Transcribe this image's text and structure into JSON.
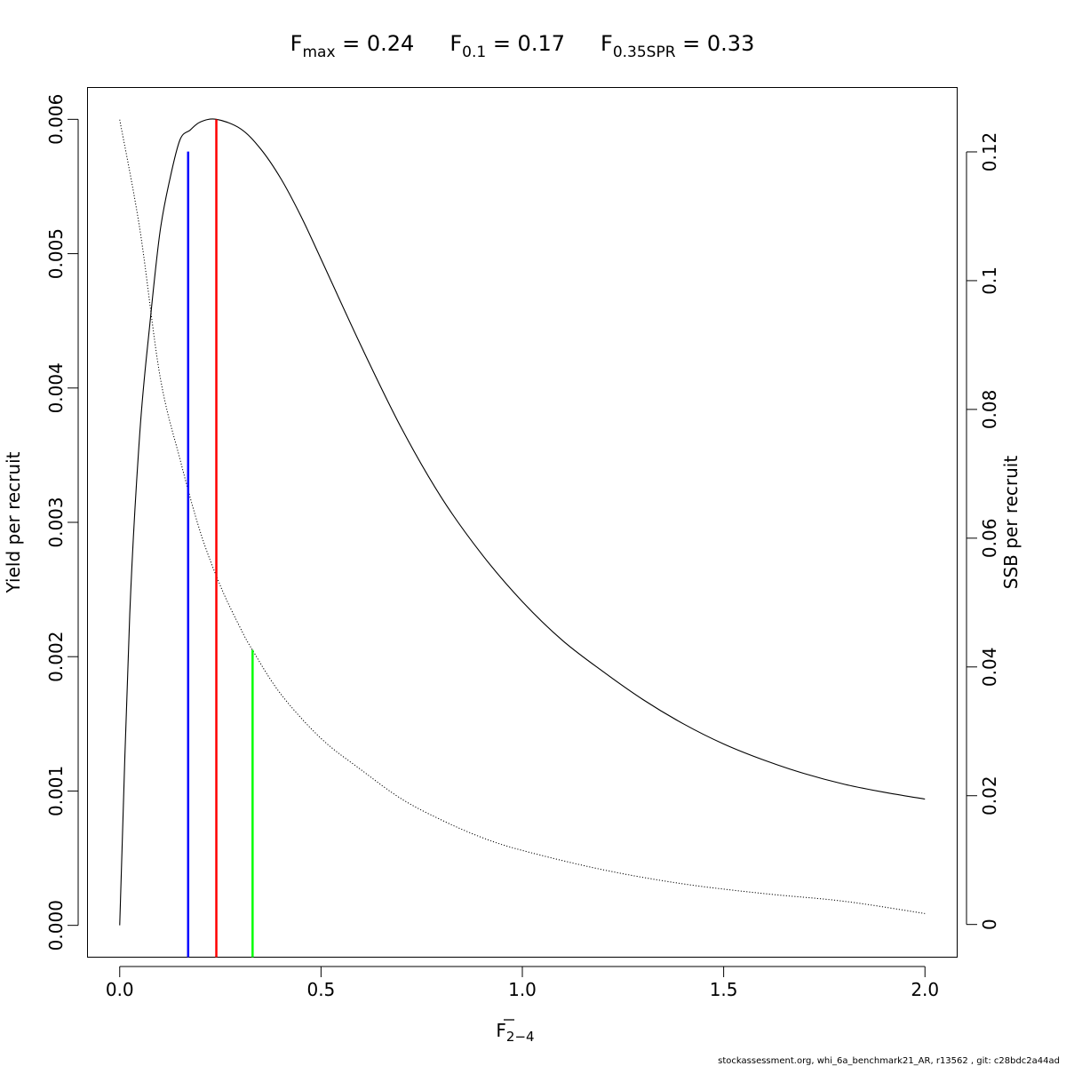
{
  "chart_data": {
    "type": "line",
    "title_parts": [
      {
        "base": "F",
        "sub": "max",
        "rest": " = 0.24"
      },
      {
        "base": "F",
        "sub": "0.1",
        "rest": " = 0.17"
      },
      {
        "base": "F",
        "sub": "0.35SPR",
        "rest": " = 0.33"
      }
    ],
    "xlabel": {
      "base": "F",
      "sub": "2−4"
    },
    "ylabel_left": "Yield per recruit",
    "ylabel_right": "SSB per recruit",
    "xlim": [
      -0.08,
      2.08
    ],
    "ylim_left": [
      -0.000237,
      0.006237
    ],
    "ylim_right": [
      -0.00508,
      0.13
    ],
    "x_ticks": [
      0,
      0.5,
      1,
      1.5,
      2
    ],
    "x_tick_labels": [
      "0.0",
      "0.5",
      "1.0",
      "1.5",
      "2.0"
    ],
    "y_left_ticks": [
      0,
      0.001,
      0.002,
      0.003,
      0.004,
      0.005,
      0.006
    ],
    "y_left_tick_labels": [
      "0.000",
      "0.001",
      "0.002",
      "0.003",
      "0.004",
      "0.005",
      "0.006"
    ],
    "y_right_ticks": [
      0,
      0.02,
      0.04,
      0.06,
      0.08,
      0.1,
      0.12
    ],
    "y_right_tick_labels": [
      "0",
      "0.02",
      "0.04",
      "0.06",
      "0.08",
      "0.1",
      "0.12"
    ],
    "series": [
      {
        "axis": "left",
        "style": "solid",
        "color": "#000000",
        "x": [
          0,
          0.025,
          0.05,
          0.075,
          0.1,
          0.125,
          0.15,
          0.175,
          0.2,
          0.24,
          0.3,
          0.35,
          0.4,
          0.45,
          0.5,
          0.6,
          0.7,
          0.8,
          0.9,
          1.0,
          1.1,
          1.2,
          1.3,
          1.4,
          1.5,
          1.6,
          1.7,
          1.8,
          1.9,
          2.0
        ],
        "y": [
          0.0,
          0.00232,
          0.00367,
          0.00448,
          0.00516,
          0.00556,
          0.00585,
          0.00592,
          0.00598,
          0.006,
          0.00593,
          0.00578,
          0.00556,
          0.00528,
          0.00496,
          0.00431,
          0.0037,
          0.00318,
          0.00276,
          0.00241,
          0.00212,
          0.00189,
          0.00168,
          0.0015,
          0.00135,
          0.00123,
          0.00113,
          0.00105,
          0.00099,
          0.00094
        ]
      },
      {
        "axis": "right",
        "style": "dotted",
        "color": "#000000",
        "x": [
          0,
          0.05,
          0.1,
          0.15,
          0.2,
          0.25,
          0.3,
          0.33,
          0.4,
          0.5,
          0.6,
          0.7,
          0.8,
          0.9,
          1.0,
          1.2,
          1.4,
          1.6,
          1.8,
          2.0
        ],
        "y": [
          0.125,
          0.108,
          0.0852,
          0.0722,
          0.061,
          0.0526,
          0.046,
          0.0426,
          0.0358,
          0.0289,
          0.024,
          0.0195,
          0.0162,
          0.0135,
          0.0115,
          0.0085,
          0.0063,
          0.0048,
          0.0036,
          0.0017
        ]
      }
    ],
    "reference_lines": [
      {
        "name": "F0.1",
        "x": 0.17,
        "top_y_left": 0.00576,
        "color": "#0000ff"
      },
      {
        "name": "Fmax",
        "x": 0.24,
        "top_y_left": 0.006,
        "color": "#ff0000"
      },
      {
        "name": "F0.35SPR",
        "x": 0.33,
        "top_y_left": 0.00205,
        "color": "#00ff00"
      }
    ],
    "grid": false,
    "footer": "stockassessment.org, whi_6a_benchmark21_AR, r13562 , git: c28bdc2a44ad"
  }
}
